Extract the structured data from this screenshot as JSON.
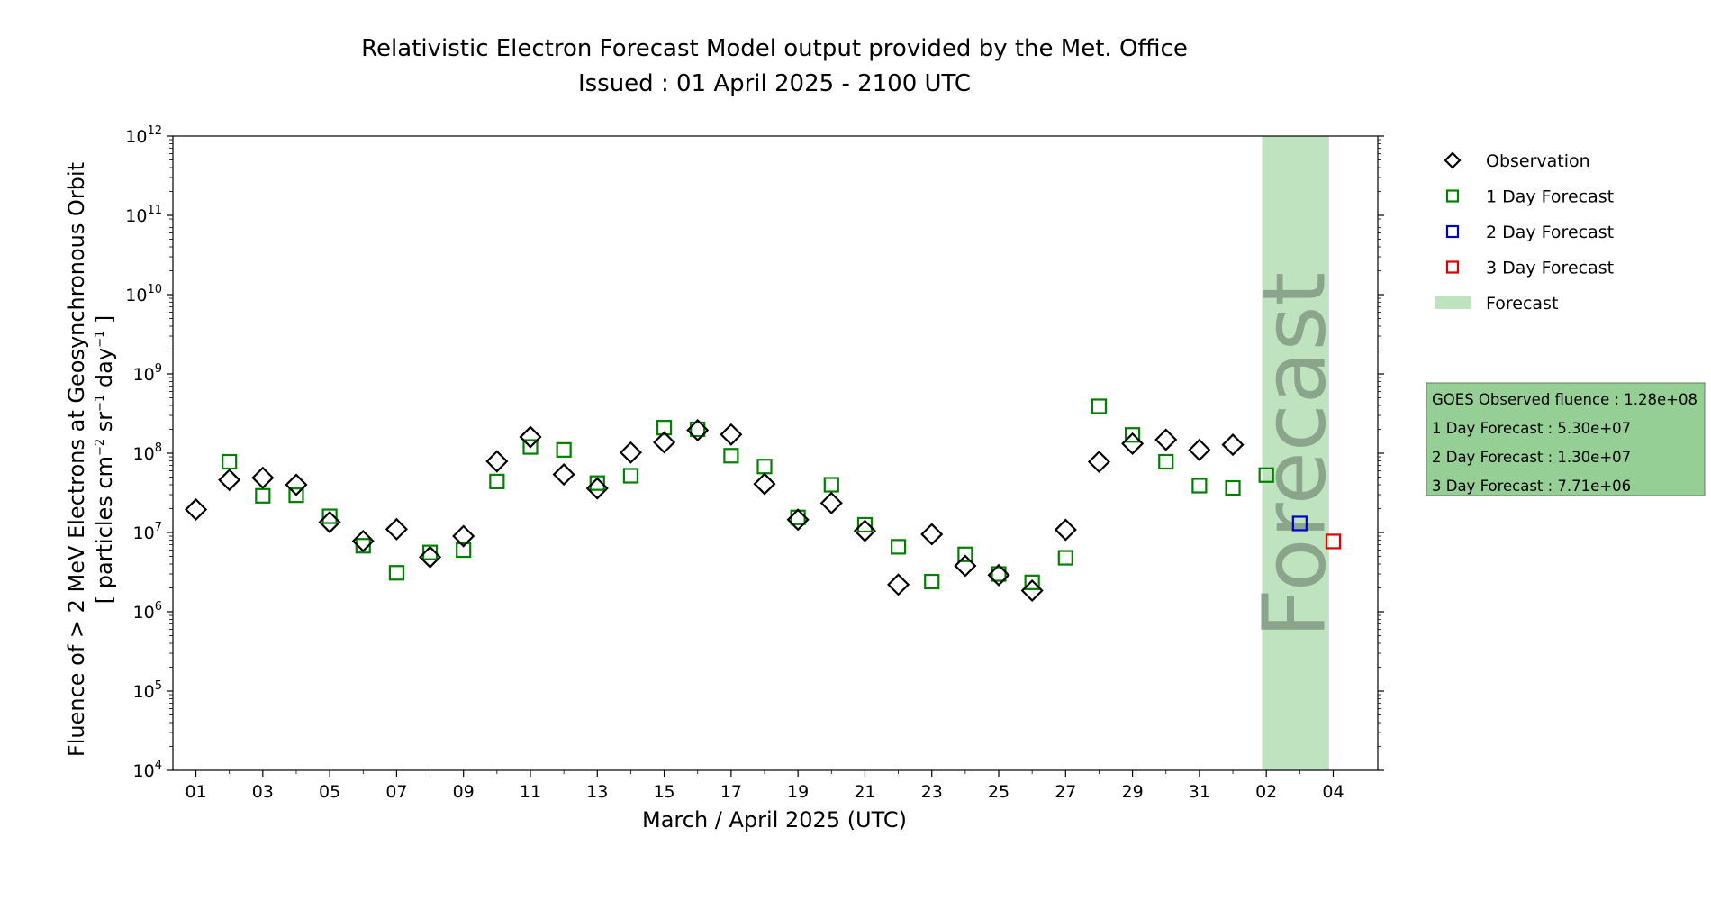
{
  "chart_data": {
    "type": "scatter",
    "title": "Relativistic Electron Forecast Model output provided by the Met. Office",
    "subtitle": "Issued : 01 April 2025 - 2100 UTC",
    "xlabel": "March / April 2025 (UTC)",
    "ylabel_line1": "Fluence of > 2 MeV Electrons at Geosynchronous Orbit",
    "ylabel_line2_parts": [
      "[ particles cm",
      "−2",
      " sr",
      "−1",
      " day",
      "−1",
      " ]"
    ],
    "yscale": "log",
    "ylim": [
      10000,
      1000000000000
    ],
    "ytick_exponents": [
      4,
      5,
      6,
      7,
      8,
      9,
      10,
      11,
      12
    ],
    "ytick_base": "10",
    "xlim": [
      "2025-02-28T07:30",
      "2025-04-05T08:00"
    ],
    "xtick_dates": [
      "2025-03-01",
      "2025-03-03",
      "2025-03-05",
      "2025-03-07",
      "2025-03-09",
      "2025-03-11",
      "2025-03-13",
      "2025-03-15",
      "2025-03-17",
      "2025-03-19",
      "2025-03-21",
      "2025-03-23",
      "2025-03-25",
      "2025-03-27",
      "2025-03-29",
      "2025-03-31",
      "2025-04-02",
      "2025-04-04"
    ],
    "xtick_labels": [
      "01",
      "03",
      "05",
      "07",
      "09",
      "11",
      "13",
      "15",
      "17",
      "19",
      "21",
      "23",
      "25",
      "27",
      "29",
      "31",
      "02",
      "04"
    ],
    "forecast_span": [
      "2025-04-01T21:00",
      "2025-04-03T21:00"
    ],
    "forecast_span_label": "Forecast",
    "series": [
      {
        "name": "Observation",
        "marker": "diamond",
        "color": "#000000",
        "x": [
          "2025-03-01",
          "2025-03-02",
          "2025-03-03",
          "2025-03-04",
          "2025-03-05",
          "2025-03-06",
          "2025-03-07",
          "2025-03-08",
          "2025-03-09",
          "2025-03-10",
          "2025-03-11",
          "2025-03-12",
          "2025-03-13",
          "2025-03-14",
          "2025-03-15",
          "2025-03-16",
          "2025-03-17",
          "2025-03-18",
          "2025-03-19",
          "2025-03-20",
          "2025-03-21",
          "2025-03-22",
          "2025-03-23",
          "2025-03-24",
          "2025-03-25",
          "2025-03-26",
          "2025-03-27",
          "2025-03-28",
          "2025-03-29",
          "2025-03-30",
          "2025-03-31",
          "2025-04-01"
        ],
        "y": [
          19500000,
          46000000,
          49000000,
          40000000,
          13500000,
          7800000,
          11000000,
          4900000,
          9000000,
          79000000,
          160000000,
          54000000,
          36000000,
          102000000,
          137000000,
          195000000,
          172000000,
          41000000,
          14500000,
          23500000,
          10500000,
          2200000,
          9500000,
          3800000,
          2900000,
          1850000,
          10800000,
          78000000,
          132000000,
          148000000,
          110000000,
          128000000
        ]
      },
      {
        "name": "1 Day Forecast",
        "marker": "square",
        "color": "#008000",
        "x": [
          "2025-03-02",
          "2025-03-03",
          "2025-03-04",
          "2025-03-05",
          "2025-03-06",
          "2025-03-07",
          "2025-03-08",
          "2025-03-09",
          "2025-03-10",
          "2025-03-11",
          "2025-03-12",
          "2025-03-13",
          "2025-03-14",
          "2025-03-15",
          "2025-03-16",
          "2025-03-17",
          "2025-03-18",
          "2025-03-19",
          "2025-03-20",
          "2025-03-21",
          "2025-03-22",
          "2025-03-23",
          "2025-03-24",
          "2025-03-25",
          "2025-03-26",
          "2025-03-27",
          "2025-03-28",
          "2025-03-29",
          "2025-03-30",
          "2025-03-31",
          "2025-04-01",
          "2025-04-02"
        ],
        "y": [
          78000000,
          29000000,
          29500000,
          16000000,
          6800000,
          3100000,
          5600000,
          6000000,
          44000000,
          120000000,
          110000000,
          42000000,
          52000000,
          210000000,
          200000000,
          93000000,
          68000000,
          15500000,
          40000000,
          12500000,
          6600000,
          2400000,
          5300000,
          3000000,
          2350000,
          4800000,
          390000000,
          170000000,
          78000000,
          39000000,
          36500000,
          53000000
        ]
      },
      {
        "name": "2 Day Forecast",
        "marker": "square",
        "color": "#0000cc",
        "x": [
          "2025-04-03"
        ],
        "y": [
          13000000
        ]
      },
      {
        "name": "3 Day Forecast",
        "marker": "square",
        "color": "#dd0000",
        "x": [
          "2025-04-04"
        ],
        "y": [
          7710000
        ]
      }
    ],
    "legend_position": "upper-right-outside",
    "legend": [
      {
        "label": "Observation",
        "marker": "diamond",
        "color": "#000000"
      },
      {
        "label": "1 Day Forecast",
        "marker": "square",
        "color": "#008000"
      },
      {
        "label": "2 Day Forecast",
        "marker": "square",
        "color": "#0000cc"
      },
      {
        "label": "3 Day Forecast",
        "marker": "square",
        "color": "#dd0000"
      },
      {
        "label": "Forecast",
        "marker": "patch",
        "color": "#bfe3bf"
      }
    ],
    "info_box": [
      "GOES Observed fluence : 1.28e+08",
      "1 Day Forecast : 5.30e+07",
      "2 Day Forecast : 1.30e+07",
      "3 Day Forecast : 7.71e+06"
    ],
    "colors": {
      "forecast_band": "#bfe3bf",
      "info_box_fill": "#96cf96",
      "info_box_border": "#5f7f5f",
      "forecast_text": "#8aa58c"
    }
  }
}
